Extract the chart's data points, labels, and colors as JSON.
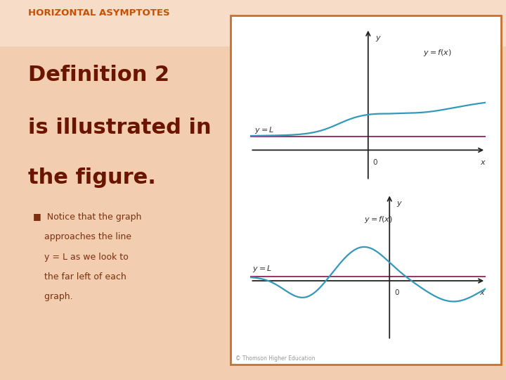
{
  "bg_color": "#f2cdb0",
  "title_text": "HORIZONTAL ASYMPTOTES",
  "title_color": "#c85000",
  "title_fontsize": 9.5,
  "main_text_lines": [
    "Definition 2",
    "is illustrated in",
    "the figure."
  ],
  "main_text_color": "#6b1500",
  "main_text_fontsize": 22,
  "bullet_lines": [
    "Notice that the graph",
    "approaches the line",
    "y = L as we look to",
    "the far left of each",
    "graph."
  ],
  "bullet_color": "#7a3010",
  "bullet_fontsize": 9,
  "box_border_color": "#c87030",
  "curve_color": "#3399bb",
  "asymptote_color": "#993366",
  "axis_color": "#222222",
  "label_color": "#333333",
  "copyright_text": "© Thomson Higher Education",
  "top_graph": {
    "xlim": [
      -6,
      6
    ],
    "ylim": [
      -0.8,
      3.2
    ],
    "L": 0.35,
    "yaxis_x": 0.0,
    "xaxis_y": 0.0
  },
  "bottom_graph": {
    "xlim": [
      -5,
      6
    ],
    "ylim": [
      -1.5,
      2.2
    ],
    "L": 0.1,
    "yaxis_x": 1.5,
    "xaxis_y": 0.0
  }
}
